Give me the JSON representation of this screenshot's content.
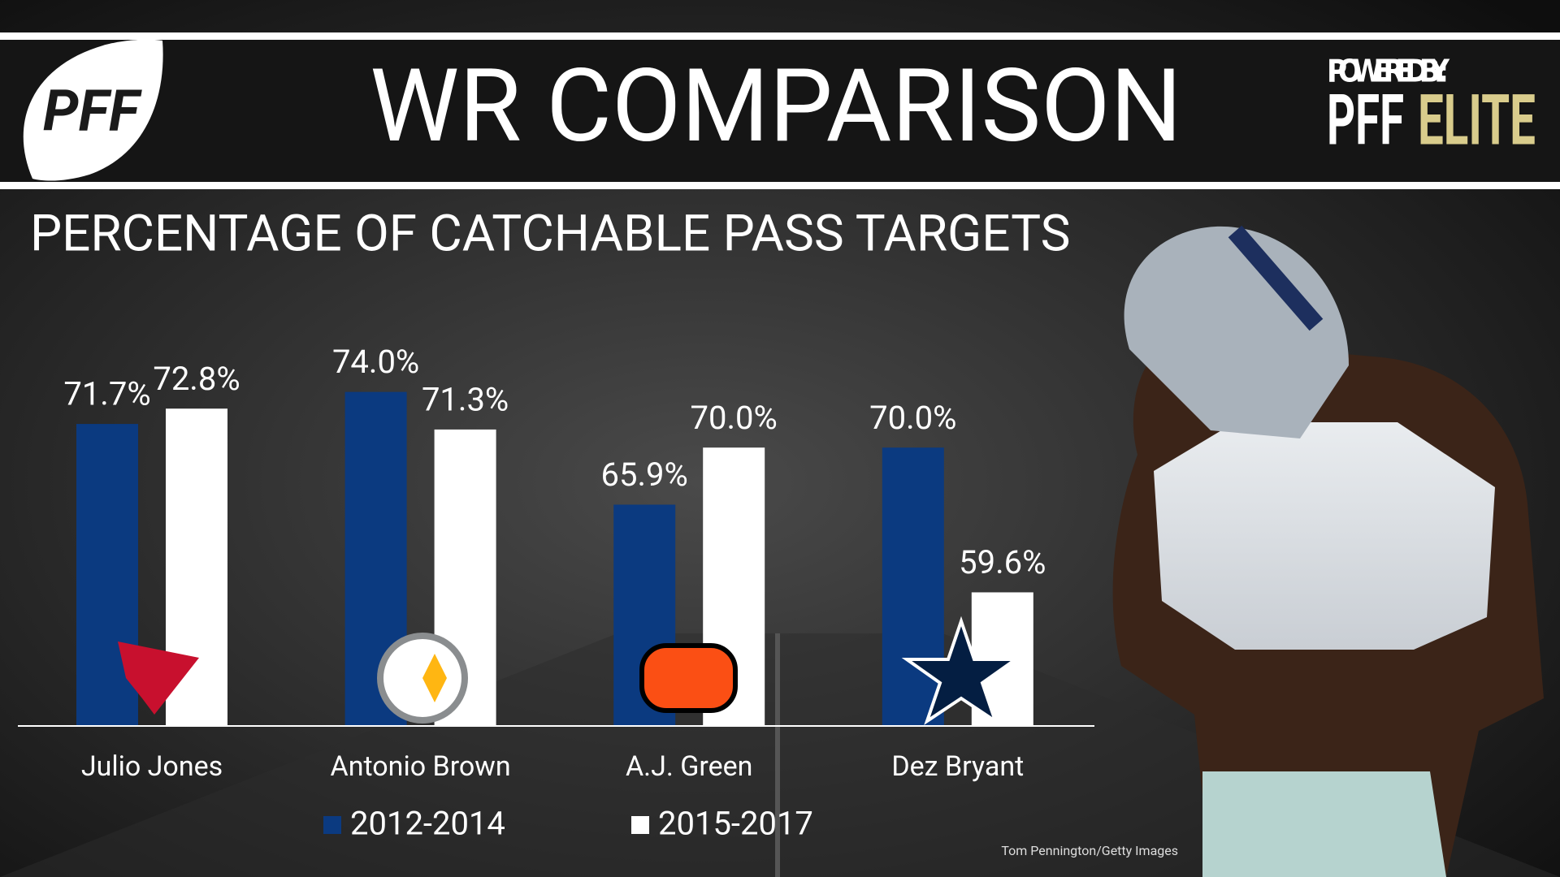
{
  "brand": {
    "logo": "PFF",
    "powered_by": "POWERED BY:",
    "powered_pff": "PFF",
    "powered_elite": "ELITE",
    "credit": "Tom Pennington/Getty Images"
  },
  "chart_data": {
    "type": "bar",
    "title": "WR COMPARISON",
    "subtitle": "PERCENTAGE OF CATCHABLE PASS TARGETS",
    "categories": [
      "Julio Jones",
      "Antonio Brown",
      "A.J. Green",
      "Dez Bryant"
    ],
    "series": [
      {
        "name": "2012-2014",
        "color": "#0b3a80",
        "values": [
          71.7,
          74.0,
          65.9,
          70.0
        ],
        "value_labels": [
          "71.7%",
          "74.0%",
          "65.9%",
          "70.0%"
        ]
      },
      {
        "name": "2015-2017",
        "color": "#ffffff",
        "values": [
          72.8,
          71.3,
          70.0,
          59.6
        ],
        "value_labels": [
          "72.8%",
          "71.3%",
          "70.0%",
          "59.6%"
        ]
      }
    ],
    "ylim": [
      50,
      75
    ]
  }
}
